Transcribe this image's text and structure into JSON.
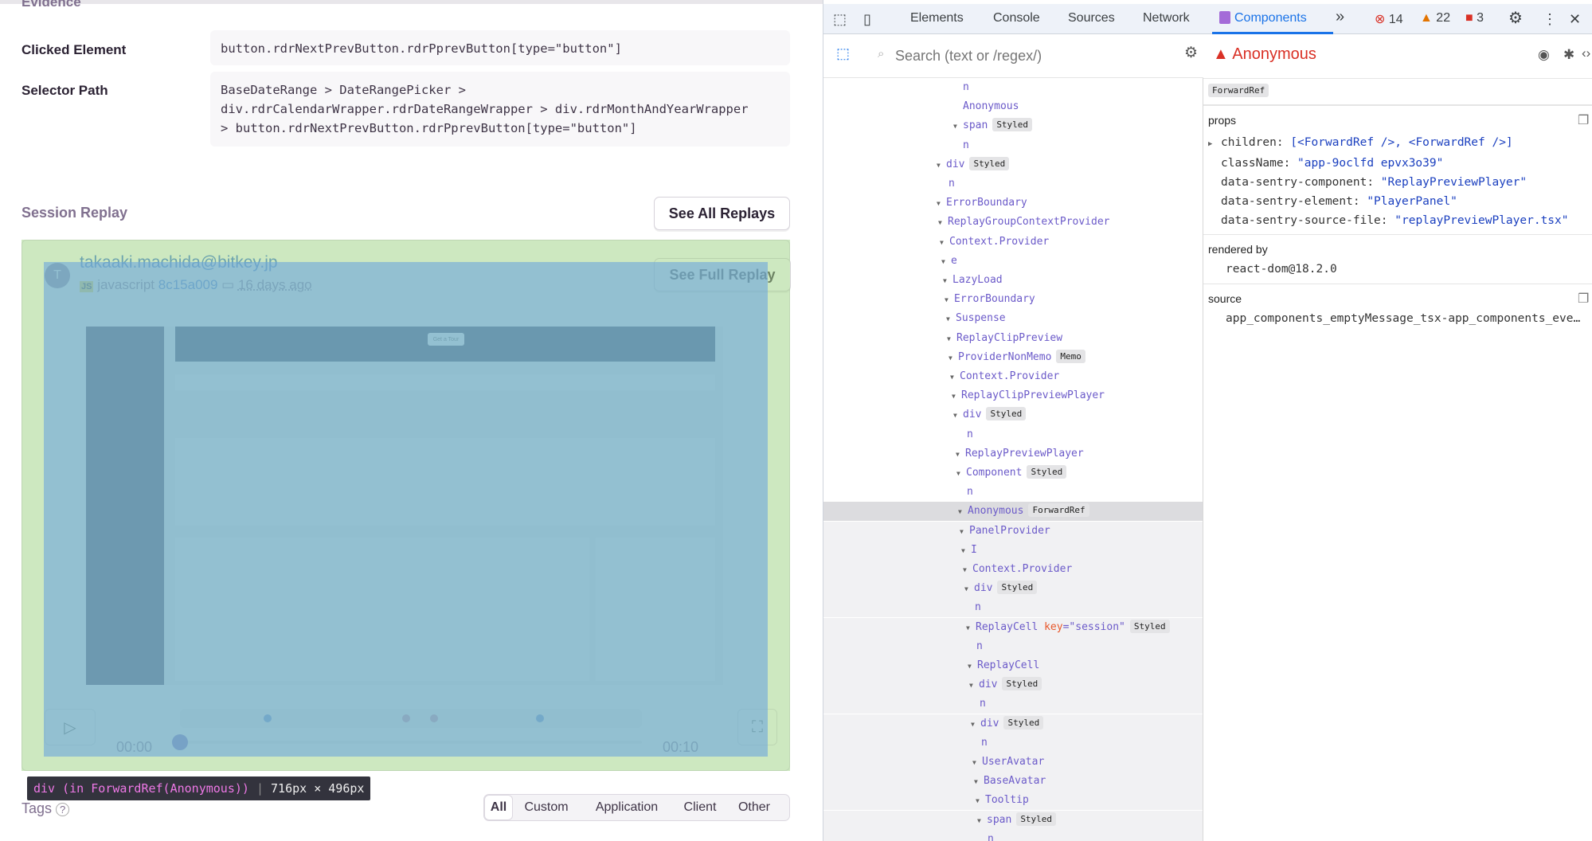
{
  "evidence": {
    "heading": "Evidence",
    "clicked_element_label": "Clicked Element",
    "clicked_element_value": "button.rdrNextPrevButton.rdrPprevButton[type=\"button\"]",
    "selector_path_label": "Selector Path",
    "selector_path_lines": [
      "BaseDateRange > DateRangePicker >",
      "div.rdrCalendarWrapper.rdrDateRangeWrapper > div.rdrMonthAndYearWrapper",
      "> button.rdrNextPrevButton.rdrPprevButton[type=\"button\"]"
    ]
  },
  "session_replay": {
    "title": "Session Replay",
    "see_all_label": "See All Replays",
    "avatar_initial": "T",
    "user": "takaaki.machida@bitkey.jp",
    "platform_badge": "JS",
    "platform": "javascript",
    "release": "8c15a009",
    "time_ago": "16 days ago",
    "see_full_label": "See Full Replay",
    "thumbnail_button": "Get a Tour",
    "current_time": "00:00",
    "duration": "00:10",
    "progress": 0,
    "event_dots": [
      {
        "pos": 0.19,
        "color": "#5b86d6"
      },
      {
        "pos": 0.49,
        "color": "#c98aa8"
      },
      {
        "pos": 0.55,
        "color": "#c98aa8"
      },
      {
        "pos": 0.78,
        "color": "#5b86d6"
      }
    ]
  },
  "inspector_tooltip": {
    "element": "div (in ForwardRef(Anonymous))",
    "size": "716px × 496px"
  },
  "tags": {
    "title": "Tags",
    "help_icon": "question-circle-icon",
    "filters": [
      "All",
      "Custom",
      "Application",
      "Client",
      "Other"
    ],
    "active": "All"
  },
  "devtools": {
    "tabs": [
      "Elements",
      "Console",
      "Sources",
      "Network",
      "Components"
    ],
    "active_tab": "Components",
    "more_tabs": "»",
    "errors": "14",
    "warnings": "22",
    "issues": "3",
    "search_placeholder": "Search (text or /regex/)",
    "tree": [
      {
        "name": "n"
      },
      {
        "name": "Anonymous"
      },
      {
        "name": "span",
        "badge": "Styled",
        "open": true
      },
      {
        "name": "n"
      },
      {
        "name": "div",
        "badge": "Styled",
        "open": true
      },
      {
        "name": "n"
      },
      {
        "name": "ErrorBoundary",
        "open": true
      },
      {
        "name": "ReplayGroupContextProvider",
        "open": true
      },
      {
        "name": "Context.Provider",
        "open": true
      },
      {
        "name": "e",
        "open": true
      },
      {
        "name": "LazyLoad",
        "open": true
      },
      {
        "name": "ErrorBoundary",
        "open": true
      },
      {
        "name": "Suspense",
        "open": true
      },
      {
        "name": "ReplayClipPreview",
        "open": true
      },
      {
        "name": "ProviderNonMemo",
        "badge": "Memo",
        "open": true
      },
      {
        "name": "Context.Provider",
        "open": true
      },
      {
        "name": "ReplayClipPreviewPlayer",
        "open": true
      },
      {
        "name": "div",
        "badge": "Styled",
        "open": true
      },
      {
        "name": "n"
      },
      {
        "name": "ReplayPreviewPlayer",
        "open": true
      },
      {
        "name": "Component",
        "badge": "Styled",
        "open": true
      },
      {
        "name": "n"
      },
      {
        "name": "Anonymous",
        "badge": "ForwardRef",
        "open": true,
        "selected": true
      },
      {
        "name": "PanelProvider",
        "open": true
      },
      {
        "name": "I",
        "open": true
      },
      {
        "name": "Context.Provider",
        "open": true
      },
      {
        "name": "div",
        "badge": "Styled",
        "open": true
      },
      {
        "name": "n"
      },
      {
        "name": "ReplayCell",
        "key": "session",
        "badge": "Styled",
        "open": true
      },
      {
        "name": "n"
      },
      {
        "name": "ReplayCell",
        "open": true
      },
      {
        "name": "div",
        "badge": "Styled",
        "open": true
      },
      {
        "name": "n"
      },
      {
        "name": "div",
        "badge": "Styled",
        "open": true
      },
      {
        "name": "n"
      },
      {
        "name": "UserAvatar",
        "open": true
      },
      {
        "name": "BaseAvatar",
        "open": true
      },
      {
        "name": "Tooltip",
        "open": true
      },
      {
        "name": "span",
        "badge": "Styled",
        "open": true
      },
      {
        "name": "n"
      }
    ],
    "selected": {
      "name": "Anonymous",
      "badge": "ForwardRef",
      "props_title": "props",
      "props": [
        {
          "key": "children",
          "value": "[<ForwardRef />, <ForwardRef />]",
          "expandable": true
        },
        {
          "key": "className",
          "value": "\"app-9oclfd epvx3o39\""
        },
        {
          "key": "data-sentry-component",
          "value": "\"ReplayPreviewPlayer\""
        },
        {
          "key": "data-sentry-element",
          "value": "\"PlayerPanel\""
        },
        {
          "key": "data-sentry-source-file",
          "value": "\"replayPreviewPlayer.tsx\""
        }
      ],
      "rendered_by_title": "rendered by",
      "rendered_by": "react-dom@18.2.0",
      "source_title": "source",
      "source": "app_components_emptyMessage_tsx-app_components_eve…"
    }
  }
}
